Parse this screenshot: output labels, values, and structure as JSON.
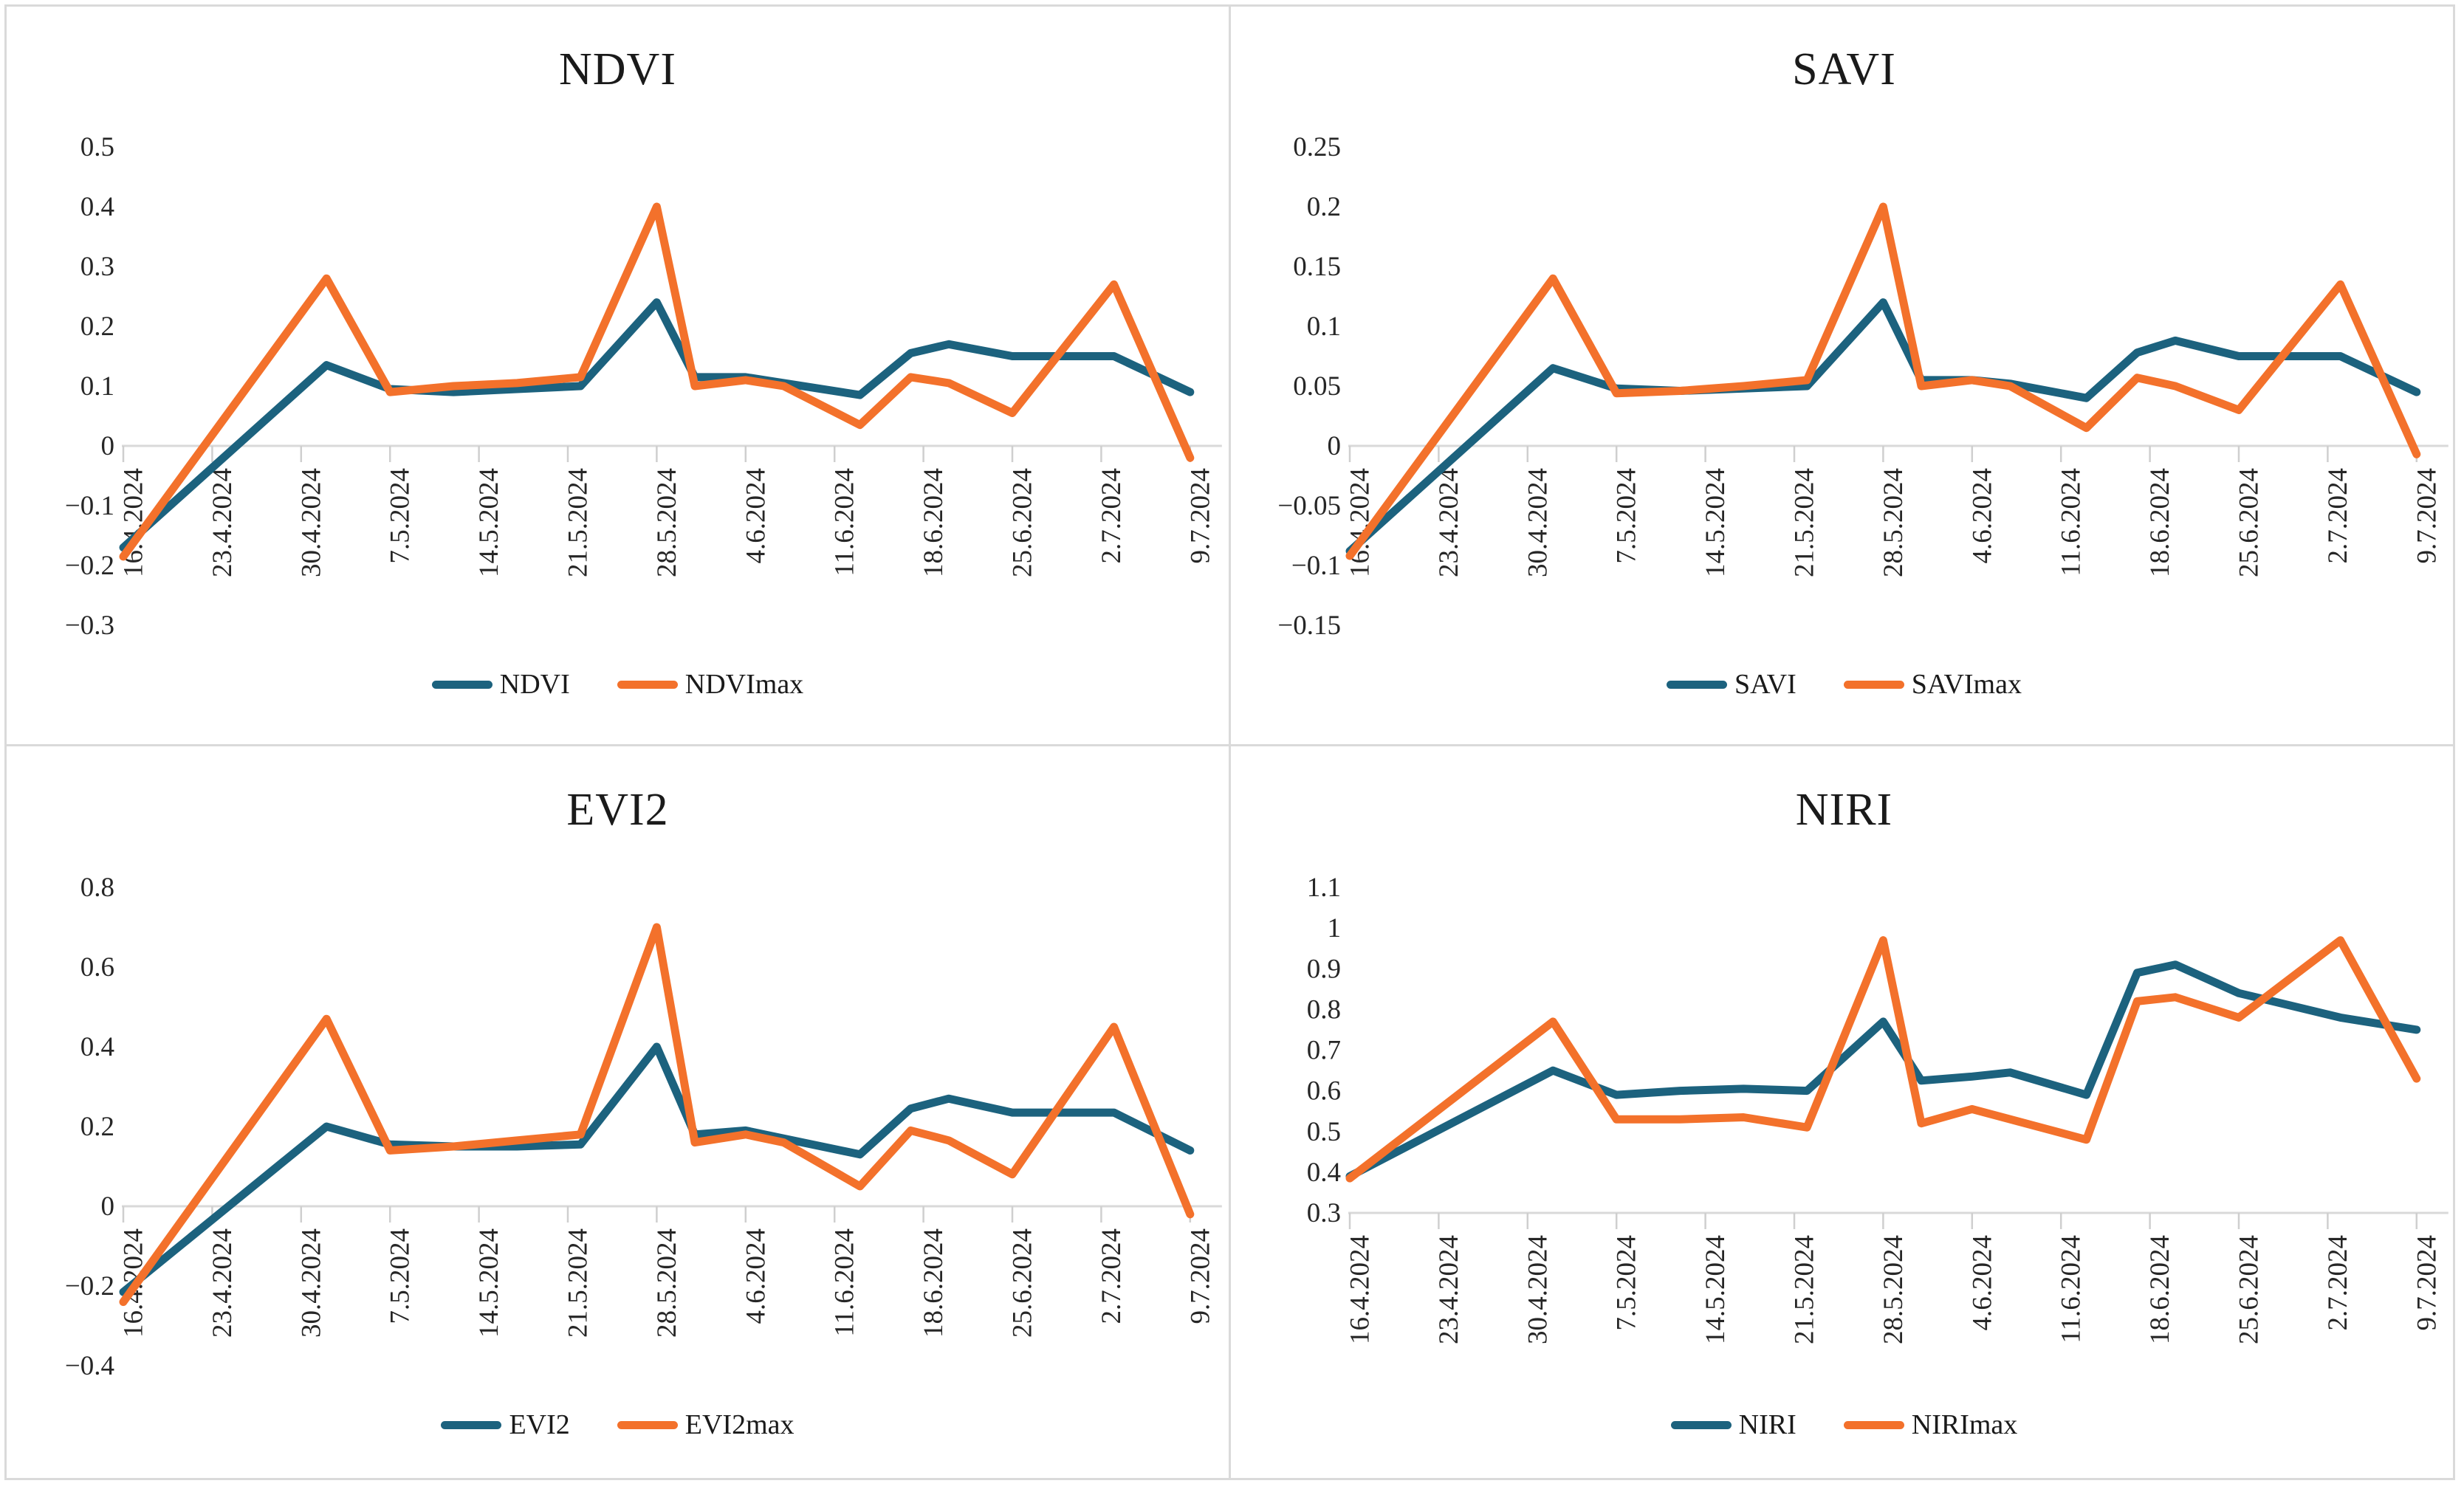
{
  "chart_data": {
    "type": "line",
    "grid": "off",
    "legend_position": "bottom-center",
    "x_tick_labels": [
      "16.4.2024",
      "23.4.2024",
      "30.4.2024",
      "7.5.2024",
      "14.5.2024",
      "21.5.2024",
      "28.5.2024",
      "4.6.2024",
      "11.6.2024",
      "18.6.2024",
      "25.6.2024",
      "2.7.2024",
      "9.7.2024"
    ],
    "x_tick_days": [
      0,
      7,
      14,
      21,
      28,
      35,
      42,
      49,
      56,
      63,
      70,
      77,
      84
    ],
    "sample_days": [
      0,
      16,
      21,
      26,
      31,
      36,
      42,
      45,
      49,
      52,
      58,
      62,
      65,
      70,
      78,
      84
    ],
    "colors": {
      "index_line": "#1C627E",
      "max_line": "#F3712B",
      "axis": "#D9D9D9",
      "tick": "#CFCFCF",
      "label_text": "#262626"
    },
    "charts": [
      {
        "title": "NDVI",
        "y_tick_labels": [
          "0.5",
          "0.4",
          "0.3",
          "0.2",
          "0.1",
          "0",
          "−0.1",
          "−0.2",
          "−0.3"
        ],
        "y_top": 0.5,
        "y_bottom": -0.3,
        "x_axis_at": 0,
        "series": [
          {
            "name": "NDVI",
            "color": "#1C627E",
            "values": [
              -0.17,
              0.135,
              0.095,
              0.09,
              0.095,
              0.1,
              0.24,
              0.115,
              0.115,
              0.105,
              0.085,
              0.155,
              0.17,
              0.15,
              0.15,
              0.09
            ]
          },
          {
            "name": "NDVImax",
            "color": "#F3712B",
            "values": [
              -0.185,
              0.28,
              0.09,
              0.1,
              0.105,
              0.115,
              0.4,
              0.1,
              0.11,
              0.1,
              0.035,
              0.115,
              0.105,
              0.055,
              0.27,
              -0.02
            ]
          }
        ]
      },
      {
        "title": "SAVI",
        "y_tick_labels": [
          "0.25",
          "0.2",
          "0.15",
          "0.1",
          "0.05",
          "0",
          "−0.05",
          "−0.1",
          "−0.15"
        ],
        "y_top": 0.25,
        "y_bottom": -0.15,
        "x_axis_at": 0,
        "series": [
          {
            "name": "SAVI",
            "color": "#1C627E",
            "values": [
              -0.088,
              0.065,
              0.048,
              0.046,
              0.048,
              0.05,
              0.12,
              0.055,
              0.055,
              0.052,
              0.04,
              0.078,
              0.088,
              0.075,
              0.075,
              0.045
            ]
          },
          {
            "name": "SAVImax",
            "color": "#F3712B",
            "values": [
              -0.092,
              0.14,
              0.044,
              0.046,
              0.05,
              0.055,
              0.2,
              0.05,
              0.055,
              0.05,
              0.015,
              0.057,
              0.05,
              0.03,
              0.135,
              -0.007
            ]
          }
        ]
      },
      {
        "title": "EVI2",
        "y_tick_labels": [
          "0.8",
          "0.6",
          "0.4",
          "0.2",
          "0",
          "−0.2",
          "−0.4"
        ],
        "y_top": 0.8,
        "y_bottom": -0.4,
        "x_axis_at": 0,
        "series": [
          {
            "name": "EVI2",
            "color": "#1C627E",
            "values": [
              -0.215,
              0.2,
              0.155,
              0.15,
              0.15,
              0.155,
              0.4,
              0.18,
              0.19,
              0.17,
              0.13,
              0.245,
              0.27,
              0.235,
              0.235,
              0.14
            ]
          },
          {
            "name": "EVI2max",
            "color": "#F3712B",
            "values": [
              -0.24,
              0.47,
              0.14,
              0.15,
              0.165,
              0.18,
              0.7,
              0.16,
              0.18,
              0.16,
              0.05,
              0.19,
              0.165,
              0.08,
              0.45,
              -0.02
            ]
          }
        ]
      },
      {
        "title": "NIRI",
        "y_tick_labels": [
          "1.1",
          "1",
          "0.9",
          "0.8",
          "0.7",
          "0.6",
          "0.5",
          "0.4",
          "0.3"
        ],
        "y_top": 1.1,
        "y_bottom": 0.3,
        "x_axis_at": 0.3,
        "series": [
          {
            "name": "NIRI",
            "color": "#1C627E",
            "values": [
              0.39,
              0.65,
              0.59,
              0.6,
              0.605,
              0.6,
              0.77,
              0.625,
              0.635,
              0.645,
              0.59,
              0.89,
              0.91,
              0.84,
              0.78,
              0.75
            ]
          },
          {
            "name": "NIRImax",
            "color": "#F3712B",
            "values": [
              0.385,
              0.77,
              0.53,
              0.53,
              0.535,
              0.51,
              0.97,
              0.52,
              0.555,
              0.53,
              0.48,
              0.82,
              0.83,
              0.78,
              0.97,
              0.63
            ]
          }
        ]
      }
    ]
  }
}
